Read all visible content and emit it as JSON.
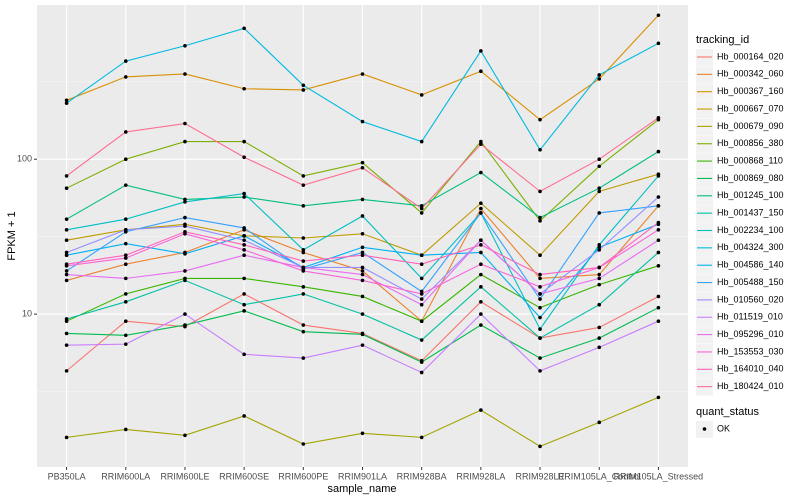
{
  "chart_data": {
    "type": "line",
    "log_y": true,
    "grid": true,
    "x_label": "sample_name",
    "y_label": "FPKM + 1",
    "legend_title": "tracking_id",
    "legend_position": "right",
    "point_legend": {
      "title": "quant_status",
      "labels": [
        "OK"
      ],
      "color": "#000000"
    },
    "categories": [
      "PB350LA",
      "RRIM600LA",
      "RRIM600LE",
      "RRIM600SE",
      "RRIM600PE",
      "RRIM901LA",
      "RRIM928BA",
      "RRIM928LA",
      "RRIM928LE",
      "RRIM105LA_Control",
      "RRIM105LA_Stressed"
    ],
    "ylim": [
      1.03,
      990
    ],
    "yticks": [
      10,
      100
    ],
    "series": [
      {
        "name": "Hb_000164_020",
        "color": "#F8766D",
        "values": [
          4.3,
          9,
          8.3,
          13.5,
          8.5,
          7.5,
          5,
          12,
          7,
          8.2,
          13
        ]
      },
      {
        "name": "Hb_000342_060",
        "color": "#EA8331",
        "values": [
          16.5,
          21,
          25,
          35,
          25,
          19,
          9,
          48,
          17,
          18,
          50
        ]
      },
      {
        "name": "Hb_000367_160",
        "color": "#D89000",
        "values": [
          240,
          340,
          355,
          285,
          280,
          355,
          260,
          370,
          180,
          330,
          850
        ]
      },
      {
        "name": "Hb_000667_070",
        "color": "#C09B00",
        "values": [
          30,
          35,
          38,
          32,
          31,
          33,
          24,
          52,
          24,
          62,
          80
        ]
      },
      {
        "name": "Hb_000679_090",
        "color": "#A3A500",
        "values": [
          1.6,
          1.8,
          1.65,
          2.2,
          1.45,
          1.7,
          1.6,
          2.4,
          1.4,
          2.0,
          2.9
        ]
      },
      {
        "name": "Hb_000856_380",
        "color": "#7CAE00",
        "values": [
          65,
          100,
          130,
          130,
          78,
          95,
          45,
          130,
          40,
          90,
          180
        ]
      },
      {
        "name": "Hb_000868_110",
        "color": "#39B600",
        "values": [
          9,
          13.5,
          17,
          17,
          15,
          13,
          9,
          18,
          11,
          15.5,
          20.5
        ]
      },
      {
        "name": "Hb_000869_080",
        "color": "#00BB4E",
        "values": [
          7.5,
          7.3,
          8.5,
          10.5,
          7.7,
          7.4,
          4.9,
          8.5,
          5.2,
          7,
          11
        ]
      },
      {
        "name": "Hb_001245_100",
        "color": "#00BF7D",
        "values": [
          41,
          68,
          55,
          57,
          50,
          55,
          50,
          82,
          42,
          65,
          112
        ]
      },
      {
        "name": "Hb_001437_150",
        "color": "#00C1A3",
        "values": [
          9.3,
          12,
          16.5,
          11.5,
          13.5,
          10,
          6.8,
          15,
          7,
          11.5,
          25
        ]
      },
      {
        "name": "Hb_002234_100",
        "color": "#00BFC4",
        "values": [
          35,
          41,
          53,
          60,
          26,
          43,
          17,
          45,
          8,
          28,
          78
        ]
      },
      {
        "name": "Hb_004324_300",
        "color": "#00BAE0",
        "values": [
          230,
          430,
          540,
          700,
          300,
          175,
          130,
          500,
          115,
          350,
          560
        ]
      },
      {
        "name": "Hb_004586_140",
        "color": "#00B0F6",
        "values": [
          24,
          28.5,
          24.5,
          32,
          20,
          27,
          24,
          25,
          9.5,
          27,
          38
        ]
      },
      {
        "name": "Hb_005488_150",
        "color": "#35A2FF",
        "values": [
          19,
          34,
          42,
          36,
          19.5,
          25,
          14,
          45,
          12.5,
          45,
          50
        ]
      },
      {
        "name": "Hb_010560_020",
        "color": "#9590FF",
        "values": [
          25,
          35,
          37,
          30,
          20,
          20,
          12.5,
          30,
          13.5,
          26,
          57
        ]
      },
      {
        "name": "Hb_011519_010",
        "color": "#C77CFF",
        "values": [
          6.3,
          6.4,
          10,
          5.5,
          5.2,
          6.3,
          4.2,
          10,
          4.3,
          6.1,
          9
        ]
      },
      {
        "name": "Hb_095296_010",
        "color": "#E76BF3",
        "values": [
          18,
          17,
          19,
          24,
          20,
          18,
          11.5,
          30,
          13.5,
          17,
          30
        ]
      },
      {
        "name": "Hb_153553_030",
        "color": "#FA62DB",
        "values": [
          20.5,
          23,
          33,
          26,
          19,
          16.5,
          13.5,
          21,
          15,
          20,
          35
        ]
      },
      {
        "name": "Hb_164010_040",
        "color": "#FF62BC",
        "values": [
          21,
          24,
          34,
          28,
          22,
          24,
          21,
          28,
          18,
          20,
          39
        ]
      },
      {
        "name": "Hb_180424_010",
        "color": "#FF6C91",
        "values": [
          78,
          150,
          170,
          103,
          68,
          88,
          48,
          125,
          62,
          100,
          185
        ]
      }
    ]
  }
}
